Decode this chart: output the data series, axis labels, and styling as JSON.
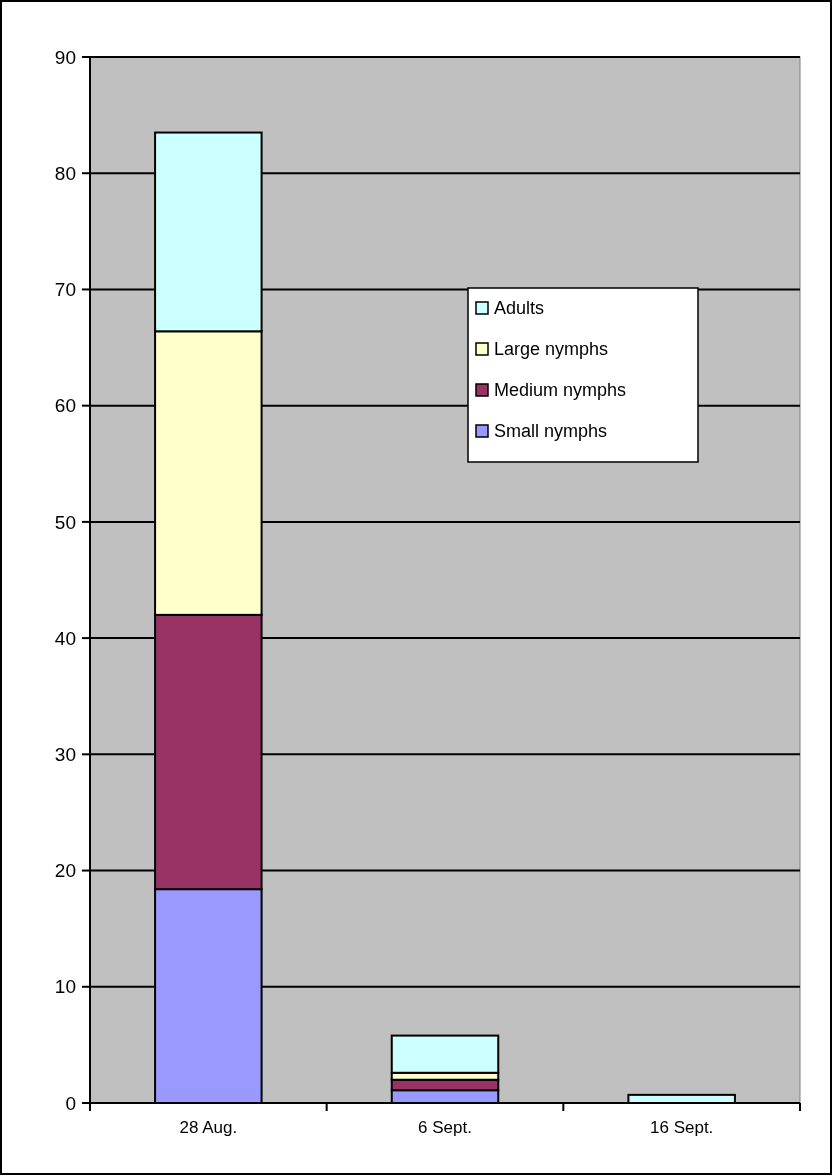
{
  "chart_data": {
    "type": "bar",
    "stacked": true,
    "categories": [
      "28 Aug.",
      "6 Sept.",
      "16 Sept."
    ],
    "series": [
      {
        "name": "Small nymphs",
        "color": "#9999ff",
        "values": [
          18.4,
          1.1,
          null
        ]
      },
      {
        "name": "Medium nymphs",
        "color": "#993366",
        "values": [
          23.6,
          0.9,
          null
        ]
      },
      {
        "name": "Large nymphs",
        "color": "#ffffcc",
        "values": [
          24.4,
          0.6,
          null
        ]
      },
      {
        "name": "Adults",
        "color": "#ccffff",
        "values": [
          17.1,
          3.2,
          0.7
        ]
      }
    ],
    "ylim": [
      0,
      90
    ],
    "yticks": [
      0,
      10,
      20,
      30,
      40,
      50,
      60,
      70,
      80,
      90
    ],
    "grid": "y",
    "legend": "right"
  }
}
